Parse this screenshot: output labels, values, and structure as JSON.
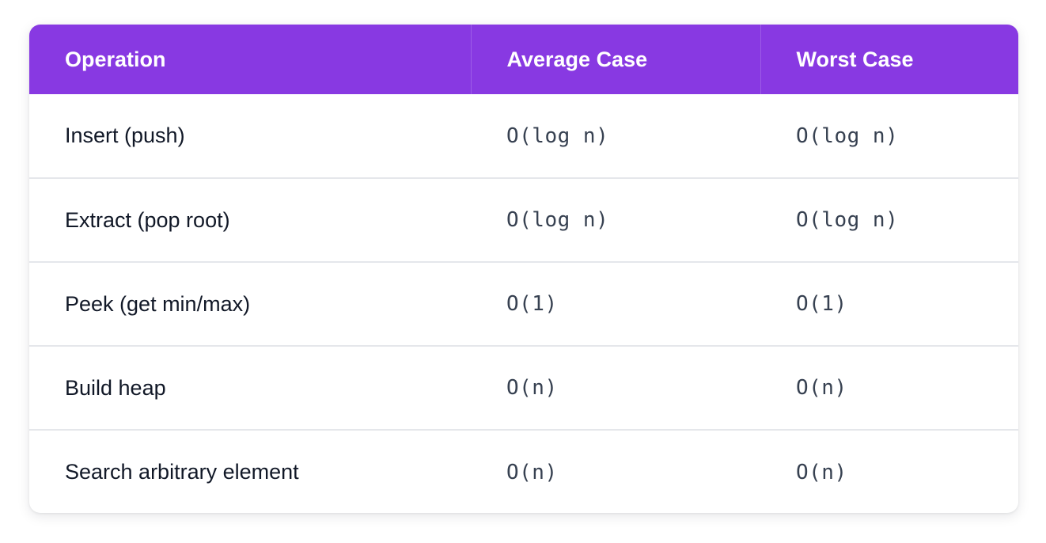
{
  "table": {
    "headers": [
      "Operation",
      "Average Case",
      "Worst Case"
    ],
    "rows": [
      [
        "Insert (push)",
        "O(log n)",
        "O(log n)"
      ],
      [
        "Extract (pop root)",
        "O(log n)",
        "O(log n)"
      ],
      [
        "Peek (get min/max)",
        "O(1)",
        "O(1)"
      ],
      [
        "Build heap",
        "O(n)",
        "O(n)"
      ],
      [
        "Search arbitrary element",
        "O(n)",
        "O(n)"
      ]
    ]
  },
  "colors": {
    "header_background": "#8839e2",
    "header_text": "#ffffff",
    "row_divider": "#e5e7eb",
    "body_text": "#111827"
  }
}
